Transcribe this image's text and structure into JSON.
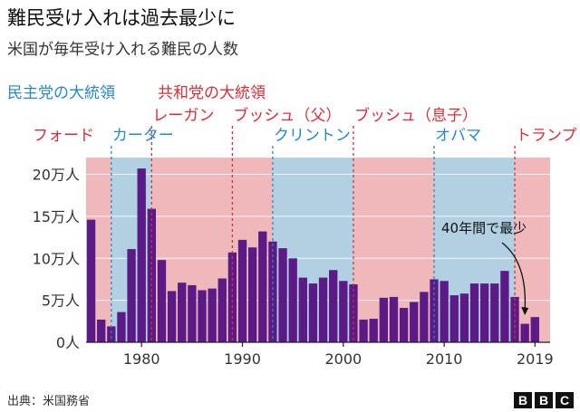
{
  "header": {
    "title": "難民受け入れは過去最少に",
    "subtitle": "米国が毎年受け入れる難民の人数"
  },
  "legend": {
    "democrat": "民主党の大統領",
    "republican": "共和党の大統領"
  },
  "colors": {
    "democrat": "#2a86c4",
    "republican": "#d4303a",
    "democrat_band": "#b1d1e3",
    "republican_band": "#efb9bc",
    "bar": "#5c1a86"
  },
  "footer": {
    "source": "出典：米国務省",
    "logo": [
      "B",
      "B",
      "C"
    ]
  },
  "chart_data": {
    "type": "bar",
    "title": "難民受け入れは過去最少に",
    "subtitle": "米国が毎年受け入れる難民の人数",
    "x": [
      1975,
      1976,
      1977,
      1978,
      1979,
      1980,
      1981,
      1982,
      1983,
      1984,
      1985,
      1986,
      1987,
      1988,
      1989,
      1990,
      1991,
      1992,
      1993,
      1994,
      1995,
      1996,
      1997,
      1998,
      1999,
      2000,
      2001,
      2002,
      2003,
      2004,
      2005,
      2006,
      2007,
      2008,
      2009,
      2010,
      2011,
      2012,
      2013,
      2014,
      2015,
      2016,
      2017,
      2018,
      2019
    ],
    "values": [
      146000,
      27000,
      19000,
      36000,
      111000,
      207000,
      159000,
      98000,
      61000,
      71000,
      68000,
      62000,
      64000,
      76000,
      107000,
      122000,
      113000,
      132000,
      120000,
      112000,
      100000,
      77000,
      70000,
      77000,
      86000,
      73000,
      69000,
      27000,
      28000,
      53000,
      54000,
      41000,
      48000,
      60000,
      75000,
      73000,
      56000,
      58000,
      70000,
      70000,
      70000,
      85000,
      54000,
      22000,
      30000
    ],
    "xticks": [
      {
        "value": 1980,
        "label": "1980"
      },
      {
        "value": 1990,
        "label": "1990"
      },
      {
        "value": 2000,
        "label": "2000"
      },
      {
        "value": 2010,
        "label": "2010"
      },
      {
        "value": 2019,
        "label": "2019"
      }
    ],
    "yticks": [
      {
        "value": 0,
        "label": "0人"
      },
      {
        "value": 50000,
        "label": "5万人"
      },
      {
        "value": 100000,
        "label": "10万人"
      },
      {
        "value": 150000,
        "label": "15万人"
      },
      {
        "value": 200000,
        "label": "20万人"
      }
    ],
    "xlim": [
      1974.5,
      2020.5
    ],
    "ylim": [
      0,
      220000
    ],
    "presidents": [
      {
        "name": "フォード",
        "party": "republican",
        "start": 1974.5,
        "end": 1977
      },
      {
        "name": "カーター",
        "party": "democrat",
        "start": 1977,
        "end": 1981
      },
      {
        "name": "レーガン",
        "party": "republican",
        "start": 1981,
        "end": 1989
      },
      {
        "name": "ブッシュ（父）",
        "party": "republican",
        "start": 1989,
        "end": 1993
      },
      {
        "name": "クリントン",
        "party": "democrat",
        "start": 1993,
        "end": 2001
      },
      {
        "name": "ブッシュ（息子）",
        "party": "republican",
        "start": 2001,
        "end": 2009
      },
      {
        "name": "オバマ",
        "party": "democrat",
        "start": 2009,
        "end": 2017
      },
      {
        "name": "トランプ",
        "party": "republican",
        "start": 2017,
        "end": 2020.5
      }
    ],
    "annotation": {
      "text": "40年間で最少",
      "year": 2018
    }
  }
}
